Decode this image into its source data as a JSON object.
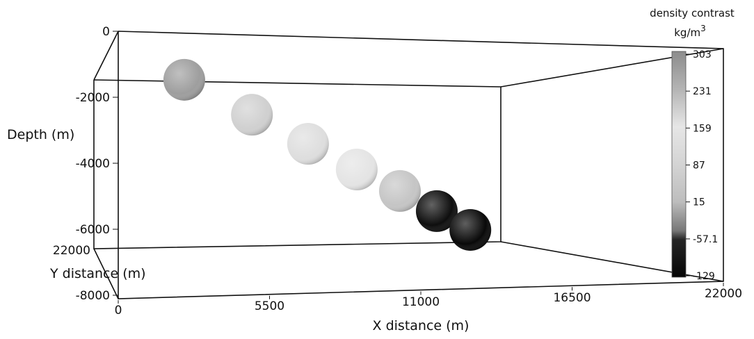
{
  "chart_data": {
    "type": "scatter3d",
    "x_label": "X distance (m)",
    "y_label": "Y distance (m)",
    "z_label": "Depth (m)",
    "xlim": [
      0,
      22000
    ],
    "xticks": [
      0,
      5500,
      11000,
      16500,
      22000
    ],
    "yticks": [
      22000
    ],
    "zlim": [
      0,
      -8000
    ],
    "zticks": [
      0,
      -2000,
      -4000,
      -6000,
      -8000
    ],
    "colorbar": {
      "title": "density contrast",
      "units": "kg/m",
      "units_superscript": "3",
      "clim": [
        -129,
        303
      ],
      "ticks": [
        303,
        231,
        159,
        87,
        15,
        -57.1,
        -129
      ],
      "colormap": [
        {
          "value": 303,
          "color": "#8c8c8c"
        },
        {
          "value": 231,
          "color": "#b4b4b4"
        },
        {
          "value": 159,
          "color": "#e6e6e6"
        },
        {
          "value": 87,
          "color": "#d4d4d4"
        },
        {
          "value": 15,
          "color": "#bdbdbd"
        },
        {
          "value": -40,
          "color": "#777777"
        },
        {
          "value": -57.1,
          "color": "#262626"
        },
        {
          "value": -129,
          "color": "#050505"
        }
      ]
    },
    "spheres": {
      "x": [
        2400,
        4860,
        6900,
        8670,
        10240,
        11580,
        12800
      ],
      "depth": [
        -1470,
        -2530,
        -3410,
        -4190,
        -4840,
        -5450,
        -6020
      ],
      "density": [
        270,
        190,
        170,
        150,
        40,
        -110,
        -120
      ]
    }
  }
}
